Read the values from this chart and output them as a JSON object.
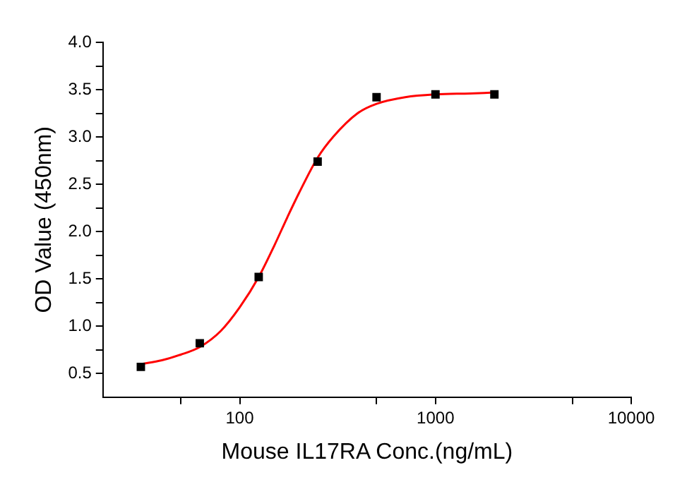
{
  "chart_data": {
    "type": "scatter",
    "xlabel": "Mouse IL17RA Conc.(ng/mL)",
    "ylabel": "OD Value (450nm)",
    "log": "x",
    "grid": false,
    "legend": false,
    "xlim": [
      20,
      10000
    ],
    "xticks": [
      {
        "value": 50,
        "label": null
      },
      100,
      {
        "value": 500,
        "label": null
      },
      1000,
      {
        "value": 5000,
        "label": null
      },
      10000
    ],
    "ylim": [
      0.25,
      4.0
    ],
    "yticks": [
      {
        "value": 0.5,
        "label": "0.5"
      },
      {
        "value": 0.75,
        "label": null
      },
      {
        "value": 1.0,
        "label": "1.0"
      },
      {
        "value": 1.25,
        "label": null
      },
      {
        "value": 1.5,
        "label": "1.5"
      },
      {
        "value": 1.75,
        "label": null
      },
      {
        "value": 2.0,
        "label": "2.0"
      },
      {
        "value": 2.25,
        "label": null
      },
      {
        "value": 2.5,
        "label": "2.5"
      },
      {
        "value": 2.75,
        "label": null
      },
      {
        "value": 3.0,
        "label": "3.0"
      },
      {
        "value": 3.25,
        "label": null
      },
      {
        "value": 3.5,
        "label": "3.5"
      },
      {
        "value": 3.75,
        "label": null
      },
      {
        "value": 4.0,
        "label": "4.0"
      }
    ],
    "series": [
      {
        "type": "line",
        "color": "#ff0000",
        "marker": "none",
        "line_style": "solid",
        "x": [
          31.25,
          40,
          50,
          62.5,
          80,
          100,
          125,
          150,
          175,
          200,
          250,
          300,
          400,
          500,
          700,
          1000,
          1500,
          2000
        ],
        "values": [
          0.6,
          0.64,
          0.7,
          0.78,
          0.95,
          1.2,
          1.52,
          1.85,
          2.15,
          2.4,
          2.78,
          3.0,
          3.25,
          3.35,
          3.42,
          3.45,
          3.46,
          3.47
        ]
      },
      {
        "type": "scatter",
        "color": "#000000",
        "marker": "square",
        "x": [
          31.25,
          62.5,
          125,
          250,
          500,
          1000,
          2000
        ],
        "values": [
          0.57,
          0.82,
          1.52,
          2.74,
          3.42,
          3.45,
          3.45
        ]
      }
    ]
  }
}
